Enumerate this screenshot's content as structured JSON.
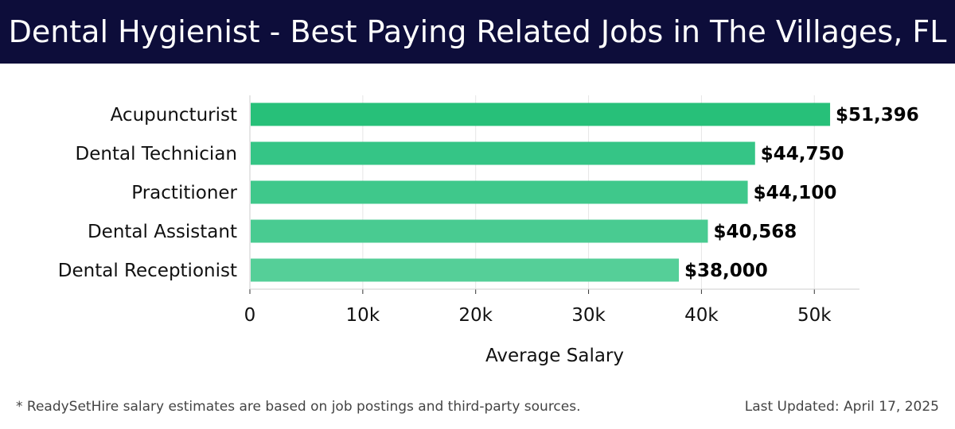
{
  "header": {
    "title": "Dental Hygienist - Best Paying Related Jobs in The Villages, FL"
  },
  "chart_data": {
    "type": "bar",
    "orientation": "horizontal",
    "categories": [
      "Acupuncturist",
      "Dental Technician",
      "Practitioner",
      "Dental Assistant",
      "Dental Receptionist"
    ],
    "values": [
      51396,
      44750,
      44100,
      40568,
      38000
    ],
    "value_labels": [
      "$51,396",
      "$44,750",
      "$44,100",
      "$40,568",
      "$38,000"
    ],
    "xlabel": "Average Salary",
    "ylabel": "",
    "xlim": [
      0,
      54000
    ],
    "ticks": [
      0,
      10000,
      20000,
      30000,
      40000,
      50000
    ],
    "tick_labels": [
      "0",
      "10k",
      "20k",
      "30k",
      "40k",
      "50k"
    ],
    "grid": true,
    "bar_colors": [
      "#27c079",
      "#35c586",
      "#3fc88b",
      "#49cb91",
      "#55cf98"
    ]
  },
  "footer": {
    "note": "* ReadySetHire salary estimates are based on job postings and third-party sources.",
    "updated": "Last Updated: April 17, 2025"
  }
}
